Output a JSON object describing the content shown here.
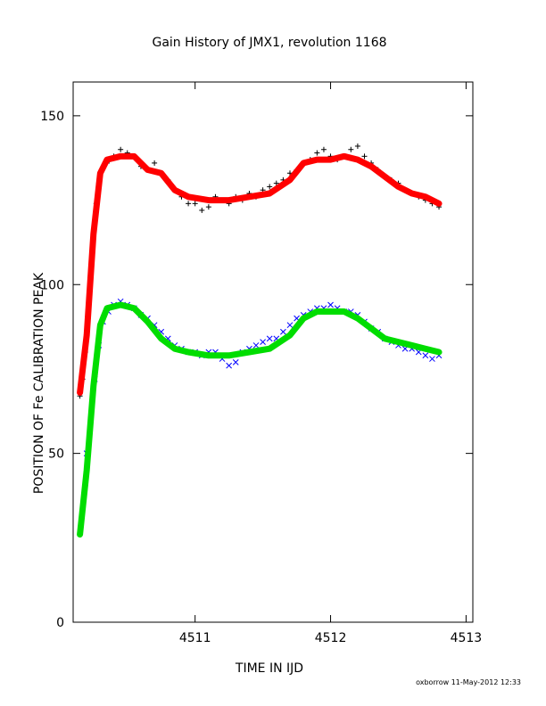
{
  "chart_data": {
    "type": "scatter",
    "title": "Gain History of JMX1, revolution 1168",
    "xlabel": "TIME IN IJD",
    "ylabel": "POSITION OF Fe CALIBRATION PEAK",
    "xlim": [
      4510.1,
      4513.05
    ],
    "ylim": [
      0,
      160
    ],
    "xticks": [
      4511,
      4512,
      4513
    ],
    "yticks": [
      0,
      50,
      100,
      150
    ],
    "grid": false,
    "colors": {
      "raw_upper": "#000000",
      "smoothed_upper": "#ff0000",
      "raw_lower": "#0000ff",
      "smoothed_lower": "#00dd00"
    },
    "series": [
      {
        "role": "raw_upper",
        "marker": "plus",
        "points": [
          [
            4510.15,
            67
          ],
          [
            4510.17,
            72
          ],
          [
            4510.19,
            80
          ],
          [
            4510.21,
            90
          ],
          [
            4510.23,
            103
          ],
          [
            4510.25,
            115
          ],
          [
            4510.27,
            124
          ],
          [
            4510.29,
            130
          ],
          [
            4510.31,
            134
          ],
          [
            4510.35,
            136
          ],
          [
            4510.4,
            138
          ],
          [
            4510.45,
            140
          ],
          [
            4510.5,
            139
          ],
          [
            4510.55,
            138
          ],
          [
            4510.6,
            135
          ],
          [
            4510.65,
            134
          ],
          [
            4510.7,
            136
          ],
          [
            4510.75,
            133
          ],
          [
            4510.8,
            131
          ],
          [
            4510.85,
            128
          ],
          [
            4510.9,
            126
          ],
          [
            4510.95,
            124
          ],
          [
            4511.0,
            124
          ],
          [
            4511.05,
            122
          ],
          [
            4511.1,
            123
          ],
          [
            4511.15,
            126
          ],
          [
            4511.2,
            125
          ],
          [
            4511.25,
            124
          ],
          [
            4511.3,
            126
          ],
          [
            4511.35,
            125
          ],
          [
            4511.4,
            127
          ],
          [
            4511.45,
            126
          ],
          [
            4511.5,
            128
          ],
          [
            4511.55,
            129
          ],
          [
            4511.6,
            130
          ],
          [
            4511.65,
            131
          ],
          [
            4511.7,
            133
          ],
          [
            4511.75,
            134
          ],
          [
            4511.8,
            136
          ],
          [
            4511.85,
            137
          ],
          [
            4511.9,
            139
          ],
          [
            4511.95,
            140
          ],
          [
            4512.0,
            138
          ],
          [
            4512.05,
            137
          ],
          [
            4512.1,
            138
          ],
          [
            4512.15,
            140
          ],
          [
            4512.2,
            141
          ],
          [
            4512.25,
            138
          ],
          [
            4512.3,
            136
          ],
          [
            4512.35,
            134
          ],
          [
            4512.4,
            132
          ],
          [
            4512.45,
            131
          ],
          [
            4512.5,
            130
          ],
          [
            4512.55,
            128
          ],
          [
            4512.6,
            127
          ],
          [
            4512.65,
            126
          ],
          [
            4512.7,
            125
          ],
          [
            4512.75,
            124
          ],
          [
            4512.8,
            123
          ]
        ]
      },
      {
        "role": "smoothed_upper",
        "marker": "line",
        "points": [
          [
            4510.15,
            68
          ],
          [
            4510.2,
            85
          ],
          [
            4510.25,
            115
          ],
          [
            4510.3,
            133
          ],
          [
            4510.35,
            137
          ],
          [
            4510.45,
            138
          ],
          [
            4510.55,
            138
          ],
          [
            4510.65,
            134
          ],
          [
            4510.75,
            133
          ],
          [
            4510.85,
            128
          ],
          [
            4510.95,
            126
          ],
          [
            4511.1,
            125
          ],
          [
            4511.25,
            125
          ],
          [
            4511.4,
            126
          ],
          [
            4511.55,
            127
          ],
          [
            4511.7,
            131
          ],
          [
            4511.8,
            136
          ],
          [
            4511.9,
            137
          ],
          [
            4512.0,
            137
          ],
          [
            4512.1,
            138
          ],
          [
            4512.2,
            137
          ],
          [
            4512.3,
            135
          ],
          [
            4512.4,
            132
          ],
          [
            4512.5,
            129
          ],
          [
            4512.6,
            127
          ],
          [
            4512.7,
            126
          ],
          [
            4512.8,
            124
          ]
        ]
      },
      {
        "role": "raw_lower",
        "marker": "cross",
        "points": [
          [
            4510.2,
            50
          ],
          [
            4510.23,
            60
          ],
          [
            4510.26,
            72
          ],
          [
            4510.29,
            82
          ],
          [
            4510.32,
            89
          ],
          [
            4510.36,
            92
          ],
          [
            4510.4,
            94
          ],
          [
            4510.45,
            95
          ],
          [
            4510.5,
            94
          ],
          [
            4510.55,
            93
          ],
          [
            4510.6,
            91
          ],
          [
            4510.65,
            90
          ],
          [
            4510.7,
            88
          ],
          [
            4510.75,
            86
          ],
          [
            4510.8,
            84
          ],
          [
            4510.85,
            82
          ],
          [
            4510.9,
            81
          ],
          [
            4510.95,
            80
          ],
          [
            4511.0,
            80
          ],
          [
            4511.05,
            79
          ],
          [
            4511.1,
            80
          ],
          [
            4511.15,
            80
          ],
          [
            4511.2,
            78
          ],
          [
            4511.25,
            76
          ],
          [
            4511.3,
            77
          ],
          [
            4511.35,
            80
          ],
          [
            4511.4,
            81
          ],
          [
            4511.45,
            82
          ],
          [
            4511.5,
            83
          ],
          [
            4511.55,
            84
          ],
          [
            4511.6,
            84
          ],
          [
            4511.65,
            86
          ],
          [
            4511.7,
            88
          ],
          [
            4511.75,
            90
          ],
          [
            4511.8,
            91
          ],
          [
            4511.85,
            92
          ],
          [
            4511.9,
            93
          ],
          [
            4511.95,
            93
          ],
          [
            4512.0,
            94
          ],
          [
            4512.05,
            93
          ],
          [
            4512.1,
            92
          ],
          [
            4512.15,
            92
          ],
          [
            4512.2,
            91
          ],
          [
            4512.25,
            89
          ],
          [
            4512.3,
            87
          ],
          [
            4512.35,
            86
          ],
          [
            4512.4,
            84
          ],
          [
            4512.45,
            83
          ],
          [
            4512.5,
            82
          ],
          [
            4512.55,
            81
          ],
          [
            4512.6,
            81
          ],
          [
            4512.65,
            80
          ],
          [
            4512.7,
            79
          ],
          [
            4512.75,
            78
          ],
          [
            4512.8,
            79
          ]
        ]
      },
      {
        "role": "smoothed_lower",
        "marker": "line",
        "points": [
          [
            4510.15,
            26
          ],
          [
            4510.2,
            45
          ],
          [
            4510.25,
            70
          ],
          [
            4510.3,
            88
          ],
          [
            4510.35,
            93
          ],
          [
            4510.45,
            94
          ],
          [
            4510.55,
            93
          ],
          [
            4510.65,
            89
          ],
          [
            4510.75,
            84
          ],
          [
            4510.85,
            81
          ],
          [
            4510.95,
            80
          ],
          [
            4511.1,
            79
          ],
          [
            4511.25,
            79
          ],
          [
            4511.4,
            80
          ],
          [
            4511.55,
            81
          ],
          [
            4511.7,
            85
          ],
          [
            4511.8,
            90
          ],
          [
            4511.9,
            92
          ],
          [
            4512.0,
            92
          ],
          [
            4512.1,
            92
          ],
          [
            4512.2,
            90
          ],
          [
            4512.3,
            87
          ],
          [
            4512.4,
            84
          ],
          [
            4512.5,
            83
          ],
          [
            4512.6,
            82
          ],
          [
            4512.7,
            81
          ],
          [
            4512.8,
            80
          ]
        ]
      }
    ]
  },
  "footer": {
    "text": "oxborrow 11-May-2012 12:33"
  }
}
